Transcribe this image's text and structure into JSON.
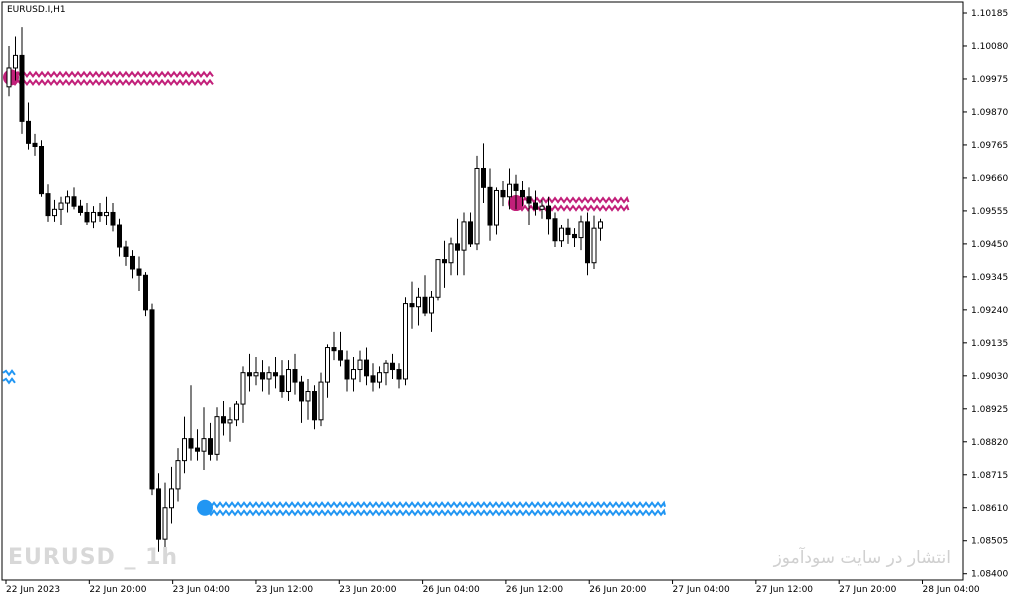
{
  "symbol": "EURUSD.I,H1",
  "watermark_left": "EURUSD _ 1h",
  "watermark_right": "انتشار در سایت سودآموز",
  "colors": {
    "background": "#ffffff",
    "bull": "#000000",
    "bear": "#000000",
    "resistance": "#c2207a",
    "support": "#2196f3",
    "grid": "#000000"
  },
  "chart_data": {
    "type": "candlestick",
    "title": "",
    "price_axis": {
      "ylim": [
        1.0838,
        1.1022
      ],
      "ticks": [
        "1.10185",
        "1.10080",
        "1.09975",
        "1.09870",
        "1.09765",
        "1.09660",
        "1.09555",
        "1.09450",
        "1.09345",
        "1.09240",
        "1.09135",
        "1.09030",
        "1.08925",
        "1.08820",
        "1.08715",
        "1.08610",
        "1.08505",
        "1.08400"
      ]
    },
    "time_axis": {
      "ticks": [
        "22 Jun 2023",
        "22 Jun 20:00",
        "23 Jun 04:00",
        "23 Jun 12:00",
        "23 Jun 20:00",
        "26 Jun 04:00",
        "26 Jun 12:00",
        "26 Jun 20:00",
        "27 Jun 04:00",
        "27 Jun 12:00",
        "27 Jun 20:00",
        "28 Jun 04:00"
      ]
    },
    "candles": [
      [
        1.0995,
        1.1008,
        1.0992,
        1.1001
      ],
      [
        1.1001,
        1.1011,
        1.0997,
        1.1005
      ],
      [
        1.1005,
        1.1014,
        1.098,
        1.0984
      ],
      [
        1.0984,
        1.099,
        1.0975,
        1.0977
      ],
      [
        1.0977,
        1.098,
        1.0973,
        1.0976
      ],
      [
        1.0976,
        1.0978,
        1.096,
        1.0961
      ],
      [
        1.0961,
        1.0964,
        1.0952,
        1.0954
      ],
      [
        1.0954,
        1.0959,
        1.0952,
        1.0956
      ],
      [
        1.0956,
        1.096,
        1.0951,
        1.0958
      ],
      [
        1.0958,
        1.0962,
        1.0955,
        1.096
      ],
      [
        1.096,
        1.0963,
        1.0956,
        1.0957
      ],
      [
        1.0957,
        1.0959,
        1.0954,
        1.0955
      ],
      [
        1.0955,
        1.0958,
        1.0951,
        1.0952
      ],
      [
        1.0952,
        1.0957,
        1.095,
        1.0955
      ],
      [
        1.0955,
        1.0958,
        1.0952,
        1.0954
      ],
      [
        1.0954,
        1.096,
        1.0951,
        1.0955
      ],
      [
        1.0955,
        1.0958,
        1.0949,
        1.0951
      ],
      [
        1.0951,
        1.0953,
        1.0941,
        1.0944
      ],
      [
        1.0944,
        1.0946,
        1.0938,
        1.0941
      ],
      [
        1.0941,
        1.0943,
        1.0934,
        1.0937
      ],
      [
        1.0937,
        1.0941,
        1.093,
        1.0935
      ],
      [
        1.0935,
        1.0936,
        1.0922,
        1.0924
      ],
      [
        1.0924,
        1.0926,
        1.0865,
        1.0867
      ],
      [
        1.0867,
        1.0872,
        1.0847,
        1.0851
      ],
      [
        1.0851,
        1.0869,
        1.0844,
        1.0861
      ],
      [
        1.0861,
        1.0874,
        1.0856,
        1.0867
      ],
      [
        1.0867,
        1.088,
        1.0863,
        1.0876
      ],
      [
        1.0876,
        1.089,
        1.0872,
        1.0883
      ],
      [
        1.0883,
        1.09,
        1.0876,
        1.088
      ],
      [
        1.088,
        1.0886,
        1.0876,
        1.0879
      ],
      [
        1.0879,
        1.0893,
        1.0873,
        1.0883
      ],
      [
        1.0883,
        1.0888,
        1.0876,
        1.0878
      ],
      [
        1.0878,
        1.0893,
        1.0876,
        1.089
      ],
      [
        1.089,
        1.0895,
        1.0884,
        1.0888
      ],
      [
        1.0888,
        1.0893,
        1.0882,
        1.0889
      ],
      [
        1.0889,
        1.0895,
        1.0887,
        1.0894
      ],
      [
        1.0894,
        1.0906,
        1.0888,
        1.0904
      ],
      [
        1.0904,
        1.091,
        1.0898,
        1.0903
      ],
      [
        1.0903,
        1.0909,
        1.09,
        1.0904
      ],
      [
        1.0904,
        1.0908,
        1.0898,
        1.0902
      ],
      [
        1.0902,
        1.0906,
        1.0897,
        1.0904
      ],
      [
        1.0904,
        1.0909,
        1.0899,
        1.0903
      ],
      [
        1.0903,
        1.0908,
        1.0896,
        1.0898
      ],
      [
        1.0898,
        1.0908,
        1.0895,
        1.0905
      ],
      [
        1.0905,
        1.091,
        1.0897,
        1.0901
      ],
      [
        1.0901,
        1.0903,
        1.0888,
        1.0895
      ],
      [
        1.0895,
        1.0902,
        1.0889,
        1.0898
      ],
      [
        1.0898,
        1.09,
        1.0886,
        1.0889
      ],
      [
        1.0889,
        1.0904,
        1.0887,
        1.0901
      ],
      [
        1.0901,
        1.0913,
        1.0896,
        1.0912
      ],
      [
        1.0912,
        1.0917,
        1.0908,
        1.0911
      ],
      [
        1.0911,
        1.0917,
        1.0906,
        1.0908
      ],
      [
        1.0908,
        1.0911,
        1.0898,
        1.0902
      ],
      [
        1.0902,
        1.0909,
        1.0898,
        1.0905
      ],
      [
        1.0905,
        1.0911,
        1.0901,
        1.0908
      ],
      [
        1.0908,
        1.0912,
        1.09,
        1.0903
      ],
      [
        1.0903,
        1.0907,
        1.0898,
        1.0901
      ],
      [
        1.0901,
        1.0906,
        1.0899,
        1.0904
      ],
      [
        1.0904,
        1.0908,
        1.09,
        1.0907
      ],
      [
        1.0907,
        1.091,
        1.0902,
        1.0905
      ],
      [
        1.0905,
        1.0907,
        1.0899,
        1.0902
      ],
      [
        1.0902,
        1.0928,
        1.09,
        1.0926
      ],
      [
        1.0926,
        1.0933,
        1.0918,
        1.0925
      ],
      [
        1.0925,
        1.0931,
        1.0919,
        1.0928
      ],
      [
        1.0928,
        1.0935,
        1.0922,
        1.0923
      ],
      [
        1.0923,
        1.093,
        1.0917,
        1.0928
      ],
      [
        1.0928,
        1.094,
        1.0927,
        1.094
      ],
      [
        1.094,
        1.0946,
        1.0931,
        1.0939
      ],
      [
        1.0939,
        1.0947,
        1.0935,
        1.0945
      ],
      [
        1.0945,
        1.0953,
        1.0935,
        1.0943
      ],
      [
        1.0943,
        1.0955,
        1.0935,
        1.0952
      ],
      [
        1.0952,
        1.0955,
        1.0944,
        1.0945
      ],
      [
        1.0945,
        1.0973,
        1.0943,
        1.0969
      ],
      [
        1.0969,
        1.0977,
        1.0958,
        1.0963
      ],
      [
        1.0963,
        1.0969,
        1.0946,
        1.0951
      ],
      [
        1.0951,
        1.0963,
        1.0948,
        1.0962
      ],
      [
        1.0962,
        1.0965,
        1.0957,
        1.096
      ],
      [
        1.096,
        1.0969,
        1.0956,
        1.0964
      ],
      [
        1.0964,
        1.0967,
        1.0956,
        1.0962
      ],
      [
        1.0962,
        1.0965,
        1.0957,
        1.096
      ],
      [
        1.096,
        1.0963,
        1.0951,
        1.0958
      ],
      [
        1.0958,
        1.0962,
        1.0954,
        1.0956
      ],
      [
        1.0956,
        1.0959,
        1.0953,
        1.0957
      ],
      [
        1.0957,
        1.096,
        1.0948,
        1.0953
      ],
      [
        1.0953,
        1.0955,
        1.0944,
        1.0946
      ],
      [
        1.0946,
        1.0951,
        1.0944,
        1.095
      ],
      [
        1.095,
        1.0953,
        1.0945,
        1.0948
      ],
      [
        1.0948,
        1.095,
        1.0944,
        1.0947
      ],
      [
        1.0947,
        1.0954,
        1.0943,
        1.0952
      ],
      [
        1.0952,
        1.0955,
        1.0935,
        1.0939
      ],
      [
        1.0939,
        1.0954,
        1.0937,
        1.095
      ],
      [
        1.095,
        1.0953,
        1.0946,
        1.0952
      ]
    ],
    "resistance_zones": [
      {
        "start_index": 0,
        "end_index": 24,
        "price": 1.0998
      },
      {
        "start_index": 78,
        "end_index": 93,
        "price": 1.0958
      }
    ],
    "support_zones": [
      {
        "start_index": 24,
        "end_index": 78,
        "price": 1.0861
      }
    ]
  }
}
